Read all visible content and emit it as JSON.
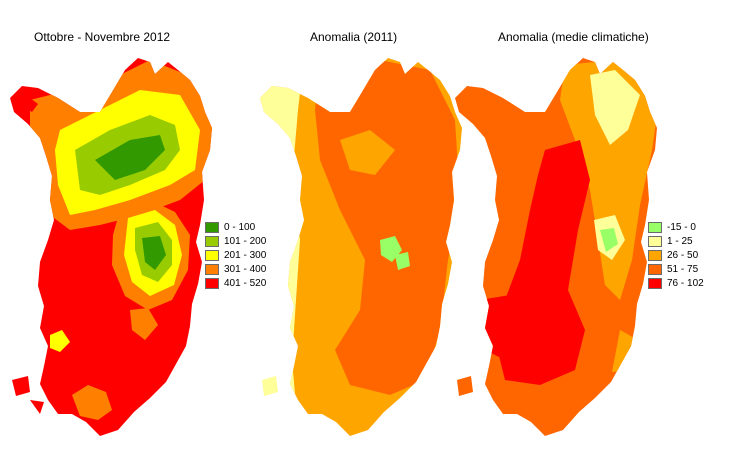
{
  "maps": [
    {
      "title": "Ottobre - Novembre 2012",
      "legend": [
        {
          "label": "0 - 100",
          "color": "#339900"
        },
        {
          "label": "101 - 200",
          "color": "#99cc00"
        },
        {
          "label": "201 - 300",
          "color": "#ffff00"
        },
        {
          "label": "301 - 400",
          "color": "#ff8000"
        },
        {
          "label": "401 - 520",
          "color": "#ff0000"
        }
      ]
    },
    {
      "title": "Anomalia (2011)"
    },
    {
      "title": "Anomalia (medie climatiche)",
      "legend": [
        {
          "label": "-15 - 0",
          "color": "#99ff66"
        },
        {
          "label": "1 - 25",
          "color": "#ffff99"
        },
        {
          "label": "26 - 50",
          "color": "#ffa500"
        },
        {
          "label": "51 - 75",
          "color": "#ff6600"
        },
        {
          "label": "76 - 102",
          "color": "#ff0000"
        }
      ]
    }
  ]
}
